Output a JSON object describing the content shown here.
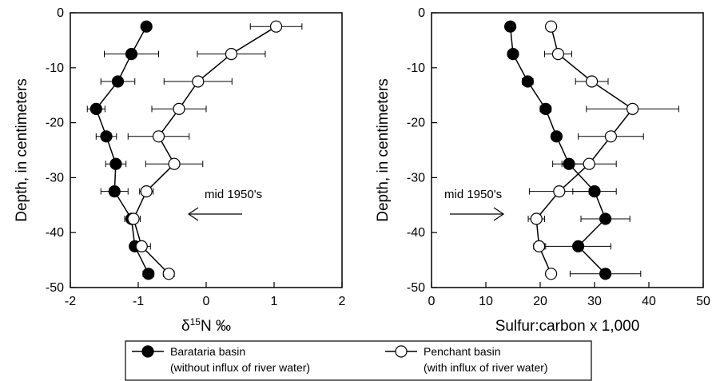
{
  "chart_data": [
    {
      "type": "line",
      "xlabel": "δ15N ‰",
      "ylabel": "Depth, in centimeters",
      "xlim": [
        -2,
        2
      ],
      "ylim": [
        -50,
        0
      ],
      "xticks": [
        -2,
        -1,
        0,
        1,
        2
      ],
      "yticks": [
        0,
        -10,
        -20,
        -30,
        -40,
        -50
      ],
      "annotation": {
        "text": "mid 1950's",
        "arrow": "left",
        "depth": -37.5
      },
      "series": [
        {
          "name": "Barataria basin",
          "marker": "filled",
          "points": [
            {
              "x": -0.88,
              "y": -2.5,
              "xerr": 0
            },
            {
              "x": -1.1,
              "y": -7.5,
              "xerr": 0.4
            },
            {
              "x": -1.3,
              "y": -12.5,
              "xerr": 0.25
            },
            {
              "x": -1.62,
              "y": -17.5,
              "xerr": 0.13
            },
            {
              "x": -1.47,
              "y": -22.5,
              "xerr": 0.15
            },
            {
              "x": -1.33,
              "y": -27.5,
              "xerr": 0.15
            },
            {
              "x": -1.35,
              "y": -32.5,
              "xerr": 0.2
            },
            {
              "x": -1.1,
              "y": -37.5,
              "xerr": 0.1
            },
            {
              "x": -1.05,
              "y": -42.5,
              "xerr": 0
            },
            {
              "x": -0.85,
              "y": -47.5,
              "xerr": 0.08
            }
          ]
        },
        {
          "name": "Penchant basin",
          "marker": "open",
          "points": [
            {
              "x": 1.03,
              "y": -2.5,
              "xerr": 0.38
            },
            {
              "x": 0.37,
              "y": -7.5,
              "xerr": 0.5
            },
            {
              "x": -0.12,
              "y": -12.5,
              "xerr": 0.5
            },
            {
              "x": -0.4,
              "y": -17.5,
              "xerr": 0.4
            },
            {
              "x": -0.7,
              "y": -22.5,
              "xerr": 0.45
            },
            {
              "x": -0.47,
              "y": -27.5,
              "xerr": 0.42
            },
            {
              "x": -0.88,
              "y": -32.5,
              "xerr": 0.1
            },
            {
              "x": -1.07,
              "y": -37.5,
              "xerr": 0.1
            },
            {
              "x": -0.95,
              "y": -42.5,
              "xerr": 0.13
            },
            {
              "x": -0.55,
              "y": -47.5,
              "xerr": 0.08
            }
          ]
        }
      ]
    },
    {
      "type": "line",
      "xlabel": "Sulfur:carbon x 1,000",
      "ylabel": "Depth, in centimeters",
      "xlim": [
        0,
        50
      ],
      "ylim": [
        -50,
        0
      ],
      "xticks": [
        0,
        10,
        20,
        30,
        40,
        50
      ],
      "yticks": [
        0,
        -10,
        -20,
        -30,
        -40,
        -50
      ],
      "annotation": {
        "text": "mid 1950's",
        "arrow": "right",
        "depth": -37.5
      },
      "series": [
        {
          "name": "Barataria basin",
          "marker": "filled",
          "points": [
            {
              "x": 14.5,
              "y": -2.5,
              "xerr": 0
            },
            {
              "x": 15.0,
              "y": -7.5,
              "xerr": 0.8
            },
            {
              "x": 17.7,
              "y": -12.5,
              "xerr": 1.0
            },
            {
              "x": 21.0,
              "y": -17.5,
              "xerr": 1.0
            },
            {
              "x": 23.0,
              "y": -22.5,
              "xerr": 0.8
            },
            {
              "x": 25.3,
              "y": -27.5,
              "xerr": 3.0
            },
            {
              "x": 30.0,
              "y": -32.5,
              "xerr": 4.0
            },
            {
              "x": 32.0,
              "y": -37.5,
              "xerr": 4.5
            },
            {
              "x": 27.0,
              "y": -42.5,
              "xerr": 6.0
            },
            {
              "x": 32.0,
              "y": -47.5,
              "xerr": 6.5
            }
          ]
        },
        {
          "name": "Penchant basin",
          "marker": "open",
          "points": [
            {
              "x": 22.0,
              "y": -2.5,
              "xerr": 0.8
            },
            {
              "x": 23.3,
              "y": -7.5,
              "xerr": 2.5
            },
            {
              "x": 29.5,
              "y": -12.5,
              "xerr": 3.0
            },
            {
              "x": 37.0,
              "y": -17.5,
              "xerr": 8.5
            },
            {
              "x": 33.0,
              "y": -22.5,
              "xerr": 6.0
            },
            {
              "x": 29.0,
              "y": -27.5,
              "xerr": 5.0
            },
            {
              "x": 23.5,
              "y": -32.5,
              "xerr": 5.5
            },
            {
              "x": 19.3,
              "y": -37.5,
              "xerr": 1.5
            },
            {
              "x": 19.8,
              "y": -42.5,
              "xerr": 1.0
            },
            {
              "x": 22.0,
              "y": -47.5,
              "xerr": 0.8
            }
          ]
        }
      ]
    }
  ],
  "legend": {
    "items": [
      {
        "label": "Barataria basin",
        "sublabel": "(without influx of river water)",
        "marker": "filled"
      },
      {
        "label": "Penchant basin",
        "sublabel": "(with influx of river water)",
        "marker": "open"
      }
    ]
  }
}
